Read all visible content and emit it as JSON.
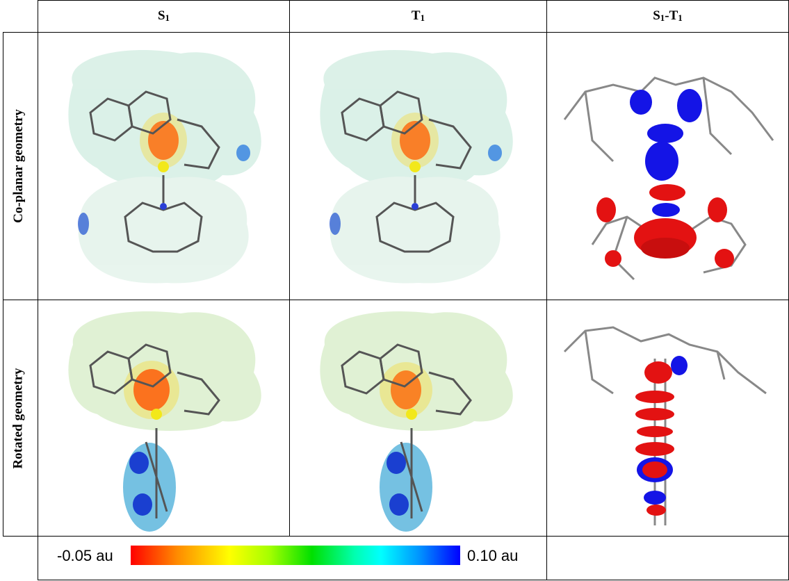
{
  "columns": [
    {
      "main": "S",
      "sub": "1"
    },
    {
      "main": "T",
      "sub": "1"
    },
    {
      "main": "S",
      "sub": "1",
      "tail": "-T",
      "tailsub": "1"
    }
  ],
  "rows": [
    {
      "label": "Co-planar geometry"
    },
    {
      "label": "Rotated geometry"
    }
  ],
  "colorbar": {
    "min_label": "-0.05 au",
    "max_label": "0.10 au",
    "colors": [
      "#ff0000",
      "#ff8a00",
      "#ffff00",
      "#a6ff00",
      "#00e000",
      "#00ffff",
      "#0090ff",
      "#0000ff"
    ]
  },
  "colors": {
    "positive_lobe": "#1414e6",
    "negative_lobe": "#e31212",
    "atom_carbon": "#9a9a9a",
    "atom_sulfur": "#f2e81a",
    "atom_nitrogen": "#2a3fd6"
  }
}
